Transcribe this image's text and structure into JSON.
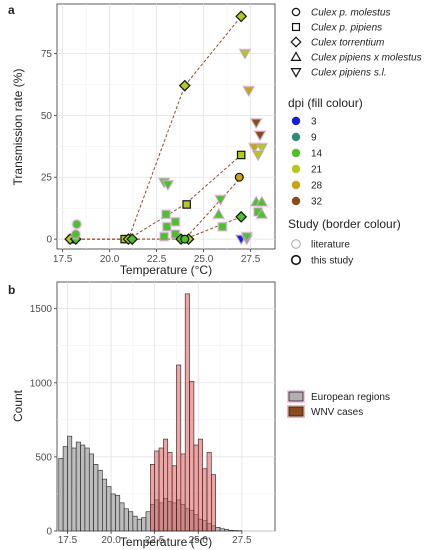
{
  "panels": {
    "a_label": "a",
    "b_label": "b"
  },
  "colors": {
    "dpi_3": "#1a1fd6",
    "dpi_9": "#2f8a7a",
    "dpi_14": "#4ec02a",
    "dpi_21": "#b4c81e",
    "dpi_28": "#c8a416",
    "dpi_32": "#8a4a1a",
    "hist_european": "#b0b0b0",
    "hist_wnv": "#d98686",
    "hist_wnv_fill": "#e65a5a",
    "dashed_line": "#a0461e"
  },
  "chart_data": [
    {
      "type": "scatter",
      "panel": "a",
      "xlabel": "Temperature (°C)",
      "ylabel": "Transmission rate (%)",
      "xlim": [
        17.2,
        28.8
      ],
      "ylim": [
        -4,
        95
      ],
      "x_ticks": [
        17.5,
        20.0,
        22.5,
        25.0,
        27.5
      ],
      "x_tick_labels": [
        "17.5",
        "20.0",
        "22.5",
        "25.0",
        "27.5"
      ],
      "y_ticks": [
        0,
        25,
        50,
        75
      ],
      "y_tick_labels": [
        "0",
        "25",
        "50",
        "75"
      ],
      "grid": true,
      "legend_position": "right",
      "species_legend": {
        "entries": [
          {
            "label": "Culex p. molestus",
            "shape": "circle"
          },
          {
            "label": "Culex p. pipiens",
            "shape": "square"
          },
          {
            "label": "Culex torrentium",
            "shape": "diamond"
          },
          {
            "label": "Culex pipiens x molestus",
            "shape": "triangle-up"
          },
          {
            "label": "Culex pipiens s.l.",
            "shape": "triangle-down"
          }
        ]
      },
      "dpi_legend": {
        "title": "dpi (fill colour)",
        "entries": [
          {
            "label": "3",
            "color": "#1a1fd6"
          },
          {
            "label": "9",
            "color": "#2f8a7a"
          },
          {
            "label": "14",
            "color": "#4ec02a"
          },
          {
            "label": "21",
            "color": "#b4c81e"
          },
          {
            "label": "28",
            "color": "#c8a416"
          },
          {
            "label": "32",
            "color": "#8a4a1a"
          }
        ]
      },
      "study_legend": {
        "title": "Study (border colour)",
        "entries": [
          {
            "label": "literature",
            "border": "literature"
          },
          {
            "label": "this study",
            "border": "this"
          }
        ]
      },
      "lines": [
        [
          [
            18,
            0
          ],
          [
            21,
            0
          ],
          [
            24,
            62
          ],
          [
            27,
            90
          ]
        ],
        [
          [
            18,
            0
          ],
          [
            21,
            0
          ],
          [
            24,
            14
          ],
          [
            27,
            34
          ]
        ],
        [
          [
            18,
            0
          ],
          [
            21,
            0
          ],
          [
            24,
            0
          ],
          [
            27,
            25
          ]
        ],
        [
          [
            18,
            0
          ],
          [
            21,
            0
          ],
          [
            24,
            0
          ],
          [
            27,
            9
          ]
        ]
      ],
      "points": [
        {
          "x": 18.1,
          "y": 0,
          "shape": "circle",
          "dpi": "28",
          "study": "this"
        },
        {
          "x": 18.0,
          "y": 0,
          "shape": "square",
          "dpi": "21",
          "study": "this"
        },
        {
          "x": 17.9,
          "y": 0,
          "shape": "diamond",
          "dpi": "21",
          "study": "this"
        },
        {
          "x": 18.2,
          "y": 0,
          "shape": "diamond",
          "dpi": "14",
          "study": "this"
        },
        {
          "x": 18.2,
          "y": 2,
          "shape": "circle",
          "dpi": "14",
          "study": "literature"
        },
        {
          "x": 18.25,
          "y": 6,
          "shape": "circle",
          "dpi": "14",
          "study": "literature"
        },
        {
          "x": 20.8,
          "y": 0,
          "shape": "square",
          "dpi": "21",
          "study": "this"
        },
        {
          "x": 21.0,
          "y": 0,
          "shape": "diamond",
          "dpi": "21",
          "study": "this"
        },
        {
          "x": 21.2,
          "y": 0,
          "shape": "diamond",
          "dpi": "14",
          "study": "this"
        },
        {
          "x": 22.9,
          "y": 23,
          "shape": "triangle-down",
          "dpi": "14",
          "study": "literature"
        },
        {
          "x": 23.1,
          "y": 22,
          "shape": "triangle-down",
          "dpi": "14",
          "study": "literature"
        },
        {
          "x": 23.0,
          "y": 10,
          "shape": "square",
          "dpi": "14",
          "study": "literature"
        },
        {
          "x": 23.05,
          "y": 5,
          "shape": "square",
          "dpi": "14",
          "study": "literature"
        },
        {
          "x": 22.9,
          "y": 1,
          "shape": "square",
          "dpi": "14",
          "study": "literature"
        },
        {
          "x": 23.5,
          "y": 7,
          "shape": "square",
          "dpi": "14",
          "study": "literature"
        },
        {
          "x": 23.5,
          "y": 2,
          "shape": "square",
          "dpi": "14",
          "study": "literature"
        },
        {
          "x": 24.0,
          "y": 62,
          "shape": "diamond",
          "dpi": "21",
          "study": "this"
        },
        {
          "x": 24.1,
          "y": 14,
          "shape": "square",
          "dpi": "21",
          "study": "this"
        },
        {
          "x": 23.8,
          "y": 0,
          "shape": "diamond",
          "dpi": "14",
          "study": "this"
        },
        {
          "x": 24.2,
          "y": 0,
          "shape": "diamond",
          "dpi": "21",
          "study": "this"
        },
        {
          "x": 24.0,
          "y": 0,
          "shape": "circle",
          "dpi": "14",
          "study": "this"
        },
        {
          "x": 25.9,
          "y": 16,
          "shape": "triangle-down",
          "dpi": "14",
          "study": "literature"
        },
        {
          "x": 25.8,
          "y": 10,
          "shape": "triangle-up",
          "dpi": "14",
          "study": "literature"
        },
        {
          "x": 26.0,
          "y": 5,
          "shape": "square",
          "dpi": "14",
          "study": "literature"
        },
        {
          "x": 27.0,
          "y": 90,
          "shape": "diamond",
          "dpi": "21",
          "study": "this"
        },
        {
          "x": 27.0,
          "y": 34,
          "shape": "square",
          "dpi": "21",
          "study": "this"
        },
        {
          "x": 26.9,
          "y": 25,
          "shape": "circle",
          "dpi": "28",
          "study": "this"
        },
        {
          "x": 27.0,
          "y": 9,
          "shape": "diamond",
          "dpi": "14",
          "study": "this"
        },
        {
          "x": 27.0,
          "y": 0,
          "shape": "triangle-down",
          "dpi": "3",
          "study": "literature"
        },
        {
          "x": 27.3,
          "y": 0,
          "shape": "triangle-down",
          "dpi": "3",
          "study": "literature"
        },
        {
          "x": 27.2,
          "y": 75,
          "shape": "triangle-down",
          "dpi": "21",
          "study": "literature"
        },
        {
          "x": 27.4,
          "y": 60,
          "shape": "triangle-down",
          "dpi": "28",
          "study": "literature"
        },
        {
          "x": 27.8,
          "y": 47,
          "shape": "triangle-down",
          "dpi": "32",
          "study": "literature"
        },
        {
          "x": 28.0,
          "y": 42,
          "shape": "triangle-down",
          "dpi": "32",
          "study": "literature"
        },
        {
          "x": 27.7,
          "y": 37,
          "shape": "triangle-down",
          "dpi": "28",
          "study": "literature"
        },
        {
          "x": 28.1,
          "y": 37,
          "shape": "triangle-down",
          "dpi": "21",
          "study": "literature"
        },
        {
          "x": 27.9,
          "y": 34,
          "shape": "triangle-down",
          "dpi": "21",
          "study": "literature"
        },
        {
          "x": 27.8,
          "y": 15,
          "shape": "triangle-up",
          "dpi": "14",
          "study": "literature"
        },
        {
          "x": 28.1,
          "y": 15,
          "shape": "triangle-up",
          "dpi": "14",
          "study": "literature"
        },
        {
          "x": 27.9,
          "y": 11,
          "shape": "square",
          "dpi": "14",
          "study": "literature"
        },
        {
          "x": 28.1,
          "y": 10,
          "shape": "triangle-up",
          "dpi": "14",
          "study": "literature"
        },
        {
          "x": 27.3,
          "y": 1,
          "shape": "triangle-down",
          "dpi": "14",
          "study": "literature"
        }
      ]
    },
    {
      "type": "bar",
      "panel": "b",
      "xlabel": "Temperature (°C)",
      "ylabel": "Count",
      "xlim": [
        16.9,
        29.4
      ],
      "ylim": [
        0,
        1680
      ],
      "x_ticks": [
        17.5,
        20.0,
        22.5,
        25.0,
        27.5
      ],
      "x_tick_labels": [
        "17.5",
        "20.0",
        "22.5",
        "25.0",
        "27.5"
      ],
      "y_ticks": [
        0,
        500,
        1000,
        1500
      ],
      "y_tick_labels": [
        "0",
        "500",
        "1000",
        "1500"
      ],
      "grid": true,
      "legend_position": "right",
      "bin_start": 17.0,
      "bin_width": 0.25,
      "series": [
        {
          "name": "European regions",
          "values": [
            490,
            570,
            640,
            560,
            600,
            580,
            560,
            520,
            450,
            410,
            350,
            300,
            250,
            240,
            190,
            150,
            130,
            100,
            80,
            90,
            130,
            180,
            210,
            190,
            220,
            200,
            190,
            210,
            180,
            150,
            140,
            110,
            80,
            70,
            50,
            35,
            25,
            15,
            10,
            5,
            3,
            2,
            0,
            0
          ]
        },
        {
          "name": "WNV cases",
          "values": [
            0,
            0,
            0,
            0,
            0,
            0,
            0,
            0,
            0,
            0,
            0,
            0,
            0,
            0,
            0,
            0,
            0,
            0,
            0,
            0,
            0,
            450,
            540,
            560,
            620,
            530,
            440,
            1120,
            520,
            1600,
            1010,
            580,
            620,
            420,
            530,
            380,
            0,
            0,
            0,
            0,
            0,
            0,
            0,
            0
          ]
        }
      ]
    }
  ]
}
